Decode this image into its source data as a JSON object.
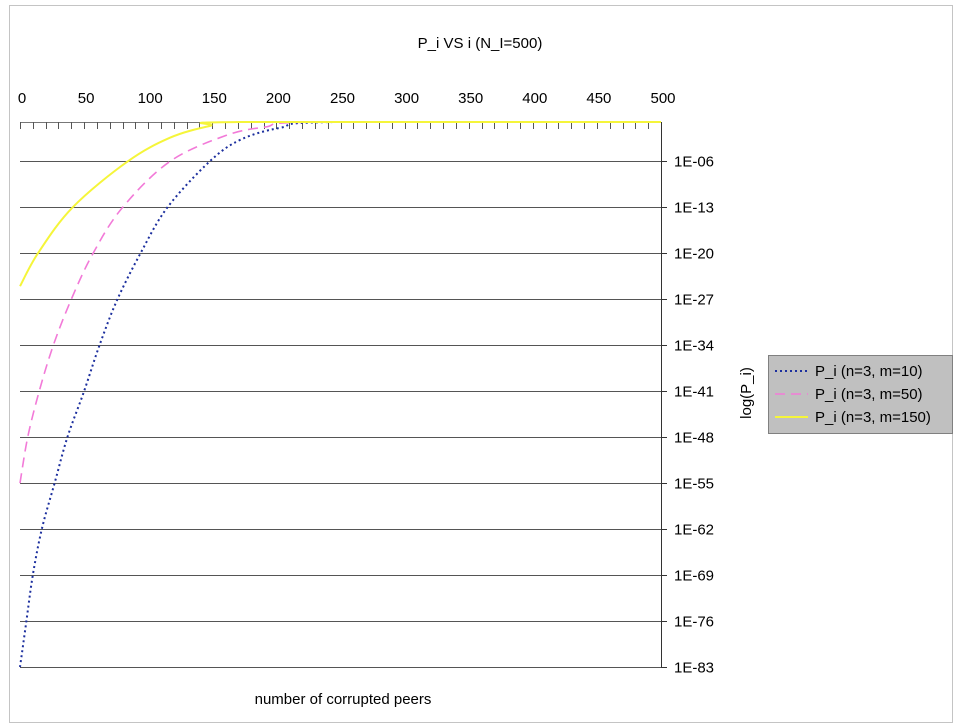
{
  "chart_data": {
    "type": "line",
    "title": "P_i VS i (N_I=500)",
    "xlabel": "number of corrupted peers",
    "ylabel": "log(P_i)",
    "xlim": [
      0,
      500
    ],
    "ylim": [
      1e-83,
      1
    ],
    "yscale": "log",
    "x_axis_side": "top",
    "y_axis_side": "right",
    "grid": "horizontal",
    "legend_position": "right",
    "x_ticks": [
      "0",
      "50",
      "100",
      "150",
      "200",
      "250",
      "300",
      "350",
      "400",
      "450",
      "500"
    ],
    "y_ticks": [
      "1E-06",
      "1E-13",
      "1E-20",
      "1E-27",
      "1E-34",
      "1E-41",
      "1E-48",
      "1E-55",
      "1E-62",
      "1E-69",
      "1E-76",
      "1E-83"
    ],
    "series": [
      {
        "name": "P_i (n=3, m=10)",
        "color": "#1c2f9e",
        "style": "dotted",
        "points": [
          [
            0,
            1e-83
          ],
          [
            5,
            1e-76
          ],
          [
            10,
            1e-69
          ],
          [
            17,
            1e-62
          ],
          [
            27,
            1e-55
          ],
          [
            37,
            1e-48
          ],
          [
            50,
            1e-41
          ],
          [
            62,
            1e-34
          ],
          [
            76,
            1e-27
          ],
          [
            94,
            1e-20
          ],
          [
            115,
            1e-13
          ],
          [
            148,
            1e-06
          ],
          [
            172,
            0.002
          ],
          [
            203,
            0.13
          ],
          [
            246,
            1
          ],
          [
            500,
            1
          ]
        ]
      },
      {
        "name": "P_i (n=3, m=50)",
        "color": "#f27ad8",
        "style": "dashed",
        "points": [
          [
            0,
            1e-55
          ],
          [
            6,
            1e-48
          ],
          [
            15,
            1e-41
          ],
          [
            26,
            1e-34
          ],
          [
            40,
            1e-27
          ],
          [
            57,
            1e-20
          ],
          [
            80,
            1e-13
          ],
          [
            117,
            1e-06
          ],
          [
            160,
            0.008
          ],
          [
            191,
            0.17
          ],
          [
            234,
            1
          ],
          [
            500,
            1
          ]
        ]
      },
      {
        "name": "P_i (n=3, m=150)",
        "color": "#f5f53a",
        "style": "solid",
        "points": [
          [
            0,
            1e-25
          ],
          [
            14,
            1e-20
          ],
          [
            41,
            1e-13
          ],
          [
            84,
            1e-06
          ],
          [
            117,
            0.004
          ],
          [
            148,
            0.25
          ],
          [
            172,
            1
          ],
          [
            500,
            1
          ]
        ]
      }
    ]
  }
}
